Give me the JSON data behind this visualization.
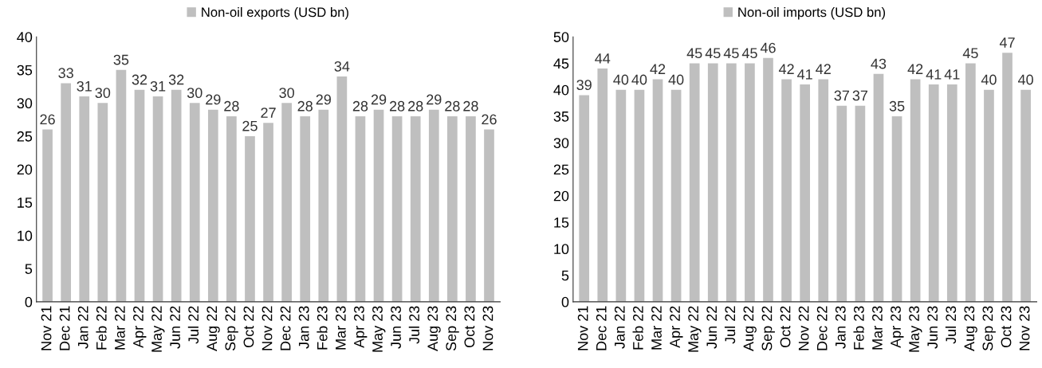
{
  "chart_data": [
    {
      "type": "bar",
      "categories": [
        "Nov 21",
        "Dec 21",
        "Jan 22",
        "Feb 22",
        "Mar 22",
        "Apr 22",
        "May 22",
        "Jun 22",
        "Jul 22",
        "Aug 22",
        "Sep 22",
        "Oct 22",
        "Nov 22",
        "Dec 22",
        "Jan 23",
        "Feb 23",
        "Mar 23",
        "Apr 23",
        "May 23",
        "Jun 23",
        "Jul 23",
        "Aug 23",
        "Sep 23",
        "Oct 23",
        "Nov 23"
      ],
      "series": [
        {
          "name": "Non-oil exports (USD bn)",
          "color": "#bfbfbf",
          "values": [
            26,
            33,
            31,
            30,
            35,
            32,
            31,
            32,
            30,
            29,
            28,
            25,
            27,
            30,
            28,
            29,
            34,
            28,
            29,
            28,
            28,
            29,
            28,
            28,
            26
          ]
        }
      ],
      "ylim": [
        0,
        40
      ],
      "yticks": [
        0,
        5,
        10,
        15,
        20,
        25,
        30,
        35,
        40
      ],
      "data_labels": true,
      "legend": "top",
      "grid": false
    },
    {
      "type": "bar",
      "categories": [
        "Nov 21",
        "Dec 21",
        "Jan 22",
        "Feb 22",
        "Mar 22",
        "Apr 22",
        "May 22",
        "Jun 22",
        "Jul 22",
        "Aug 22",
        "Sep 22",
        "Oct 22",
        "Nov 22",
        "Dec 22",
        "Jan 23",
        "Feb 23",
        "Mar 23",
        "Apr 23",
        "May 23",
        "Jun 23",
        "Jul 23",
        "Aug 23",
        "Sep 23",
        "Oct 23",
        "Nov 23"
      ],
      "series": [
        {
          "name": "Non-oil imports (USD bn)",
          "color": "#bfbfbf",
          "values": [
            39,
            44,
            40,
            40,
            42,
            40,
            45,
            45,
            45,
            45,
            46,
            42,
            41,
            42,
            37,
            37,
            43,
            35,
            42,
            41,
            41,
            45,
            40,
            47,
            40
          ]
        }
      ],
      "ylim": [
        0,
        50
      ],
      "yticks": [
        0,
        5,
        10,
        15,
        20,
        25,
        30,
        35,
        40,
        45,
        50
      ],
      "data_labels": true,
      "legend": "top",
      "grid": false
    }
  ]
}
